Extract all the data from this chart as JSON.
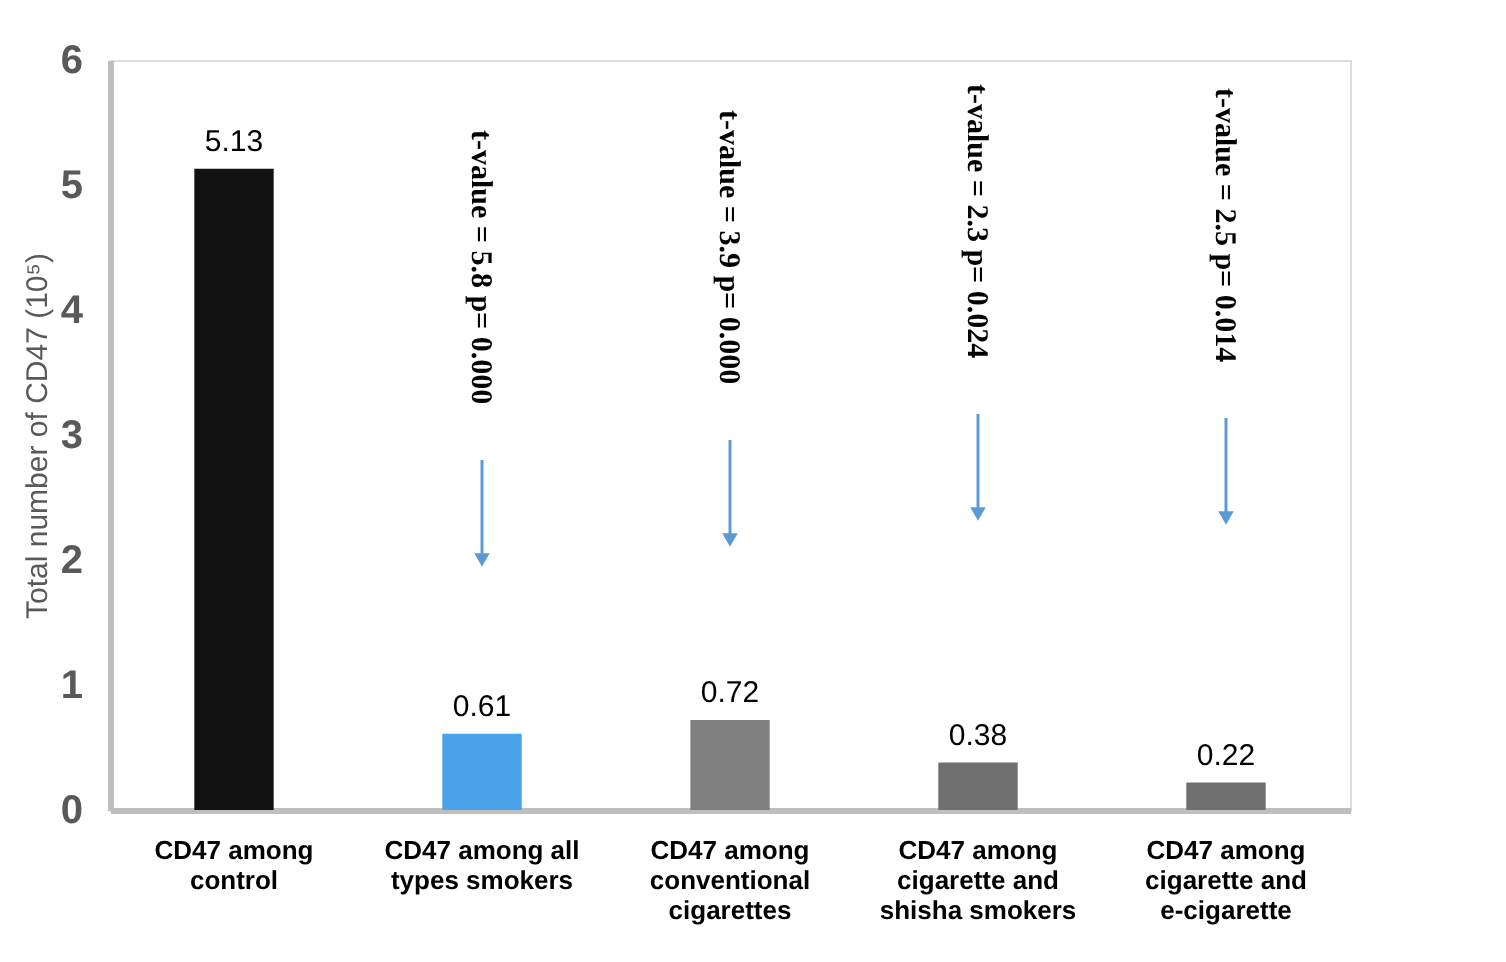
{
  "chart_data": {
    "type": "bar",
    "ylabel": "Total number of CD47 (10⁵)",
    "categories": [
      "CD47 among control",
      "CD47 among all types smokers",
      "CD47 among conventional cigarettes",
      "CD47 among cigarette and shisha smokers",
      "CD47 among cigarette and e-cigarette"
    ],
    "values": [
      5.13,
      0.61,
      0.72,
      0.38,
      0.22
    ],
    "colors": [
      "#111111",
      "#4aa3e8",
      "#808080",
      "#707070",
      "#707070"
    ],
    "ylim": [
      0,
      6
    ],
    "yticks": [
      0,
      1,
      2,
      3,
      4,
      5,
      6
    ],
    "grid": false,
    "data_labels": true,
    "annotations": [
      "t-value = 5.8   p= 0.000",
      "t-value = 3.9   p= 0.000",
      "t-value = 2.3   p= 0.024",
      "t-value = 2.5   p= 0.014"
    ]
  }
}
